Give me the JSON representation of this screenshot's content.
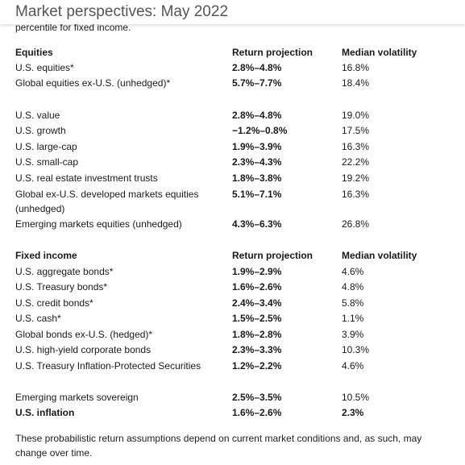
{
  "header": {
    "title": "Market perspectives: May 2022"
  },
  "intro_fragment": "percentile for fixed income.",
  "equities": {
    "columns": [
      "Equities",
      "Return projection",
      "Median volatility"
    ],
    "group1": [
      {
        "name": "U.S. equities*",
        "ret": "2.8%–4.8%",
        "vol": "16.8%"
      },
      {
        "name": "Global equities ex-U.S. (unhedged)*",
        "ret": "5.7%–7.7%",
        "vol": "18.4%"
      }
    ],
    "group2": [
      {
        "name": "U.S. value",
        "ret": "2.8%–4.8%",
        "vol": "19.0%"
      },
      {
        "name": "U.S. growth",
        "ret": "−1.2%–0.8%",
        "vol": "17.5%"
      },
      {
        "name": "U.S. large-cap",
        "ret": "1.9%–3.9%",
        "vol": "16.3%"
      },
      {
        "name": "U.S. small-cap",
        "ret": "2.3%–4.3%",
        "vol": "22.2%"
      },
      {
        "name": "U.S. real estate investment trusts",
        "ret": "1.8%–3.8%",
        "vol": "19.2%"
      },
      {
        "name": "Global ex-U.S. developed markets equities",
        "name2": "(unhedged)",
        "ret": "5.1%–7.1%",
        "vol": "16.3%"
      },
      {
        "name": "Emerging markets equities (unhedged)",
        "ret": "4.3%–6.3%",
        "vol": "26.8%"
      }
    ]
  },
  "fixed_income": {
    "columns": [
      "Fixed income",
      "Return projection",
      "Median volatility"
    ],
    "group1": [
      {
        "name": "U.S. aggregate bonds*",
        "ret": "1.9%–2.9%",
        "vol": "4.6%"
      },
      {
        "name": "U.S. Treasury bonds*",
        "ret": "1.6%–2.6%",
        "vol": "4.8%"
      },
      {
        "name": "U.S. credit bonds*",
        "ret": "2.4%–3.4%",
        "vol": "5.8%"
      },
      {
        "name": "U.S. cash*",
        "ret": "1.5%–2.5%",
        "vol": "1.1%"
      },
      {
        "name": "Global bonds ex-U.S. (hedged)*",
        "ret": "1.8%–2.8%",
        "vol": "3.9%"
      },
      {
        "name": "U.S. high-yield corporate bonds",
        "ret": "2.3%–3.3%",
        "vol": "10.3%"
      },
      {
        "name": "U.S. Treasury Inflation-Protected Securities",
        "ret": "1.2%–2.2%",
        "vol": "4.6%"
      }
    ],
    "group2": [
      {
        "name": "Emerging markets sovereign",
        "ret": "2.5%–3.5%",
        "vol": "10.5%"
      },
      {
        "name": "U.S. inflation",
        "ret": "1.6%–2.6%",
        "vol": "2.3%"
      }
    ]
  },
  "footnote": "These probabilistic return assumptions depend on current market conditions and, as such, may change over time."
}
